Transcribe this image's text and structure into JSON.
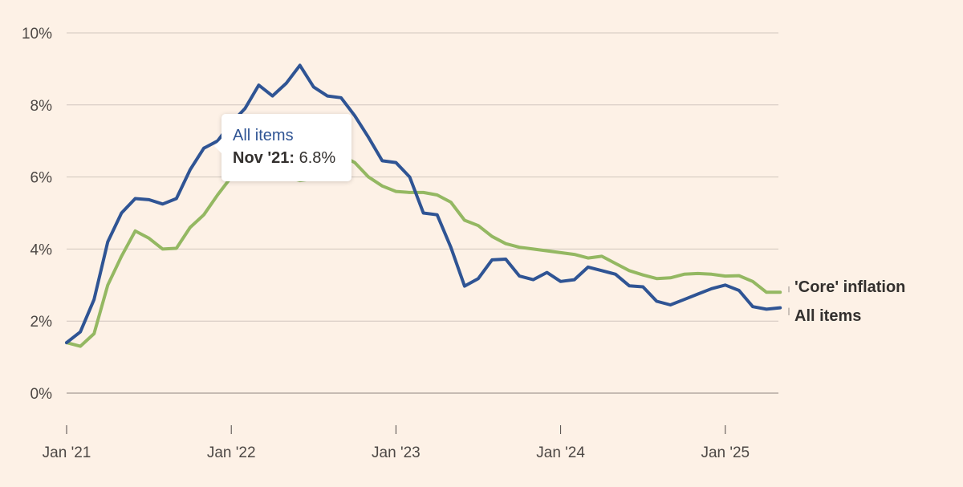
{
  "chart_data": {
    "type": "line",
    "title": "",
    "xlabel": "",
    "ylabel": "",
    "x": [
      "2021-01",
      "2021-02",
      "2021-03",
      "2021-04",
      "2021-05",
      "2021-06",
      "2021-07",
      "2021-08",
      "2021-09",
      "2021-10",
      "2021-11",
      "2021-12",
      "2022-01",
      "2022-02",
      "2022-03",
      "2022-04",
      "2022-05",
      "2022-06",
      "2022-07",
      "2022-08",
      "2022-09",
      "2022-10",
      "2022-11",
      "2022-12",
      "2023-01",
      "2023-02",
      "2023-03",
      "2023-04",
      "2023-05",
      "2023-06",
      "2023-07",
      "2023-08",
      "2023-09",
      "2023-10",
      "2023-11",
      "2023-12",
      "2024-01",
      "2024-02",
      "2024-03",
      "2024-04",
      "2024-05",
      "2024-06",
      "2024-07",
      "2024-08",
      "2024-09",
      "2024-10",
      "2024-11",
      "2024-12",
      "2025-01",
      "2025-02",
      "2025-03",
      "2025-04",
      "2025-05"
    ],
    "x_ticks": [
      "Jan '21",
      "Jan '22",
      "Jan '23",
      "Jan '24",
      "Jan '25"
    ],
    "y_ticks": [
      "0%",
      "2%",
      "4%",
      "6%",
      "8%",
      "10%"
    ],
    "ylim": [
      0,
      10
    ],
    "grid": true,
    "series": [
      {
        "name": "All items",
        "color": "#2f5494",
        "values": [
          1.4,
          1.7,
          2.6,
          4.2,
          5.0,
          5.4,
          5.37,
          5.25,
          5.4,
          6.2,
          6.8,
          7.0,
          7.5,
          7.9,
          8.55,
          8.25,
          8.6,
          9.1,
          8.5,
          8.25,
          8.2,
          7.7,
          7.1,
          6.45,
          6.4,
          6.0,
          5.0,
          4.95,
          4.05,
          2.97,
          3.18,
          3.7,
          3.72,
          3.25,
          3.15,
          3.35,
          3.1,
          3.15,
          3.5,
          3.4,
          3.3,
          2.98,
          2.95,
          2.55,
          2.45,
          2.6,
          2.75,
          2.9,
          3.0,
          2.85,
          2.4,
          2.33,
          2.37
        ]
      },
      {
        "name": "'Core' inflation",
        "color": "#94b862",
        "values": [
          1.4,
          1.3,
          1.65,
          3.0,
          3.8,
          4.5,
          4.3,
          4.0,
          4.02,
          4.6,
          4.95,
          5.5,
          6.0,
          6.3,
          6.45,
          6.2,
          6.0,
          5.9,
          5.95,
          6.3,
          6.6,
          6.4,
          6.0,
          5.75,
          5.6,
          5.57,
          5.57,
          5.5,
          5.3,
          4.8,
          4.65,
          4.35,
          4.15,
          4.05,
          4.0,
          3.95,
          3.9,
          3.85,
          3.75,
          3.8,
          3.6,
          3.4,
          3.28,
          3.18,
          3.2,
          3.3,
          3.32,
          3.3,
          3.25,
          3.26,
          3.1,
          2.8,
          2.8
        ]
      }
    ],
    "tooltip": {
      "series": "All items",
      "date": "Nov '21:",
      "value": "6.8%"
    }
  }
}
